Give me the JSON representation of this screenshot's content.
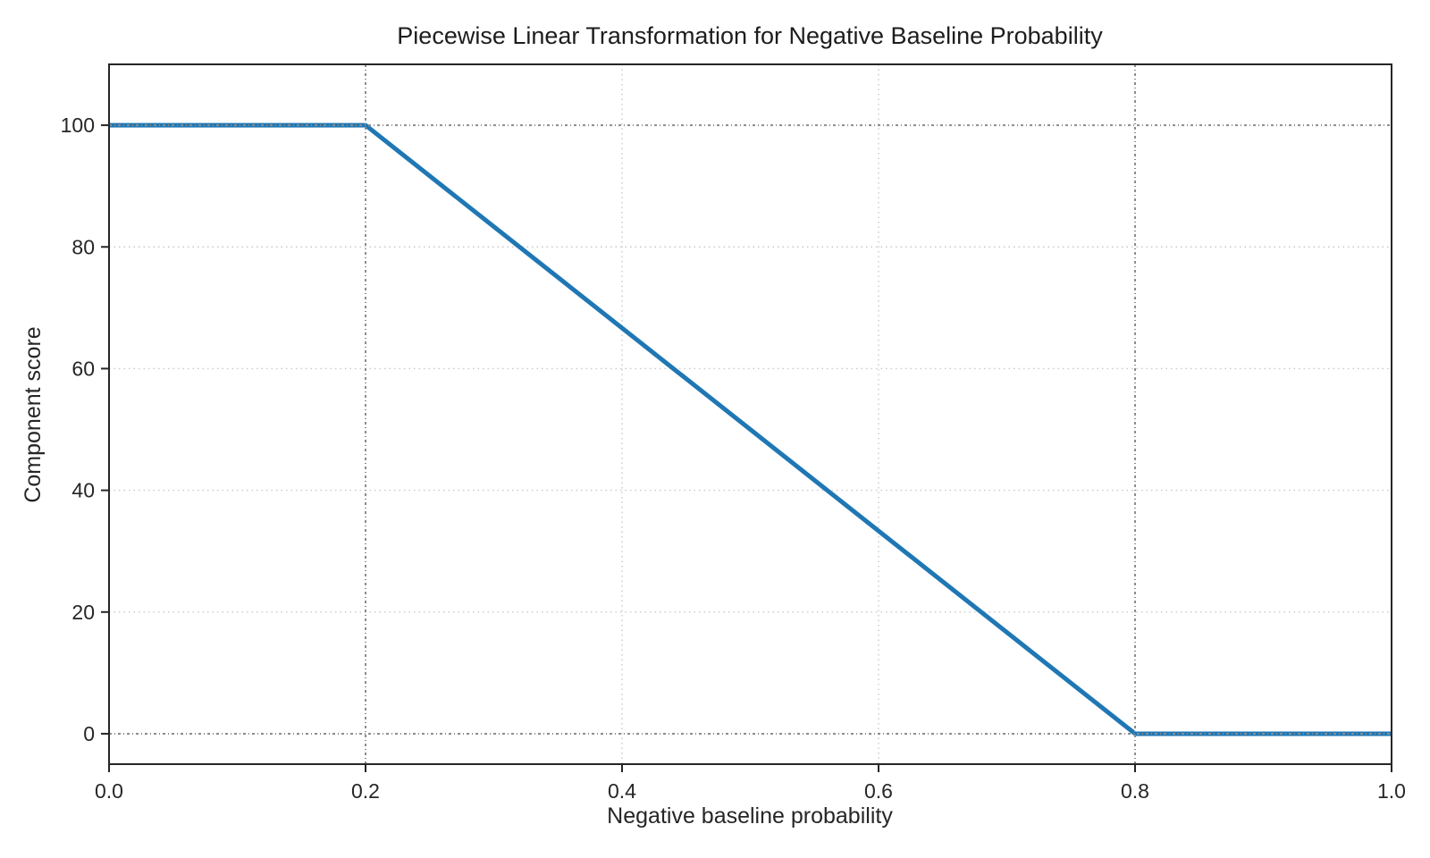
{
  "page": {
    "background_color": "#ffffff"
  },
  "chart_data": {
    "type": "line",
    "title": "Piecewise Linear Transformation for Negative Baseline Probability",
    "xlabel": "Negative baseline probability",
    "ylabel": "Component score",
    "x": [
      0.0,
      0.2,
      0.8,
      1.0
    ],
    "y": [
      100,
      100,
      0,
      0
    ],
    "xlim": [
      0.0,
      1.0
    ],
    "ylim": [
      -5,
      110
    ],
    "xticks": [
      0.0,
      0.2,
      0.4,
      0.6,
      0.8,
      1.0
    ],
    "xtick_labels": [
      "0.0",
      "0.2",
      "0.4",
      "0.6",
      "0.8",
      "1.0"
    ],
    "yticks": [
      0,
      20,
      40,
      60,
      80,
      100
    ],
    "ytick_labels": [
      "0",
      "20",
      "40",
      "60",
      "80",
      "100"
    ],
    "grid": true,
    "legend": false,
    "line_color": "#1f77b4",
    "line_width": 5,
    "grid_color": "#c9c9c9",
    "reference_lines": {
      "vertical_x": [
        0.2,
        0.8
      ],
      "horizontal_y": [
        0,
        100
      ],
      "color": "#8c8c8c",
      "style": "dash-dot"
    }
  }
}
